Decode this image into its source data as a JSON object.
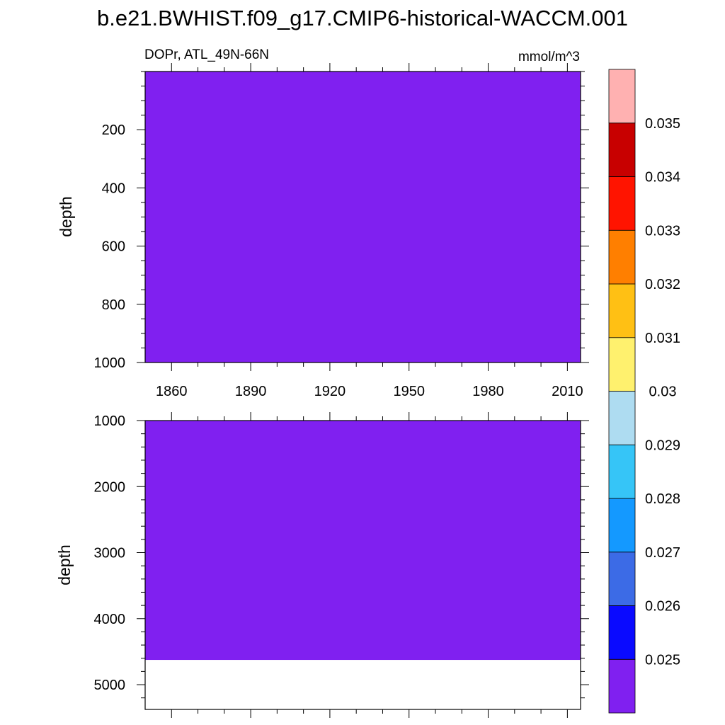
{
  "title": "b.e21.BWHIST.f09_g17.CMIP6-historical-WACCM.001",
  "colors": {
    "fill": "#8020F0",
    "frame": "#000000",
    "background": "#FFFFFF"
  },
  "chart_data": [
    {
      "type": "heatmap",
      "name": "upper-panel",
      "left_label": "DOPr, ATL_49N-66N",
      "right_label": "mmol/m^3",
      "xlabel": "",
      "ylabel": "depth",
      "xlim": [
        1850,
        2015
      ],
      "ylim": [
        0,
        1000
      ],
      "y_reversed": true,
      "x_major_ticks": [
        1860,
        1890,
        1920,
        1950,
        1980,
        2010
      ],
      "x_tick_labels": [
        "1860",
        "1890",
        "1920",
        "1950",
        "1980",
        "2010"
      ],
      "y_major_ticks": [
        200,
        400,
        600,
        800,
        1000
      ],
      "y_tick_labels": [
        "200",
        "400",
        "600",
        "800",
        "1000"
      ],
      "y_minor_step": 50,
      "filled_range": [
        0,
        1000
      ],
      "filled_level": "< 0.025"
    },
    {
      "type": "heatmap",
      "name": "lower-panel",
      "xlabel": "",
      "ylabel": "depth",
      "xlim": [
        1850,
        2015
      ],
      "ylim": [
        1000,
        5375
      ],
      "y_reversed": true,
      "x_major_ticks": [
        1860,
        1890,
        1920,
        1950,
        1980,
        2010
      ],
      "y_major_ticks": [
        1000,
        2000,
        3000,
        4000,
        5000
      ],
      "y_tick_labels": [
        "1000",
        "2000",
        "3000",
        "4000",
        "5000"
      ],
      "y_minor_step": 200,
      "filled_range": [
        1000,
        4625
      ],
      "filled_level": "< 0.025"
    },
    {
      "type": "colorbar",
      "name": "colorbar",
      "labels": [
        "0.025",
        "0.026",
        "0.027",
        "0.028",
        "0.029",
        "0.03",
        "0.031",
        "0.032",
        "0.033",
        "0.034",
        "0.035"
      ],
      "colors": [
        "#8020F0",
        "#0A0AFF",
        "#3C6BE6",
        "#1499FF",
        "#36C5F7",
        "#AEDCF1",
        "#FFF16E",
        "#FFC014",
        "#FF7F00",
        "#FF1400",
        "#C80000",
        "#FFB1B1"
      ]
    }
  ]
}
